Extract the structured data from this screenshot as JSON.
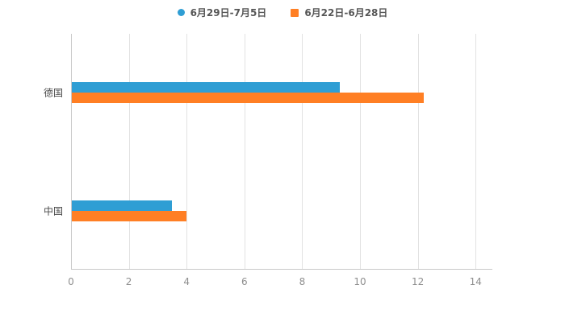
{
  "chart_data": {
    "type": "bar",
    "orientation": "horizontal",
    "title": "",
    "xlabel": "",
    "ylabel": "",
    "categories": [
      "德国",
      "中国"
    ],
    "series": [
      {
        "name": "6月29日-7月5日",
        "marker": "circle",
        "color": "#2f9ed4",
        "values": [
          9.3,
          3.5
        ]
      },
      {
        "name": "6月22日-6月28日",
        "marker": "square",
        "color": "#ff7f24",
        "values": [
          12.2,
          4.0
        ]
      }
    ],
    "xlim": [
      0,
      14.3
    ],
    "xticks": [
      0,
      2,
      4,
      6,
      8,
      10,
      12,
      14
    ],
    "grid": true,
    "legend_position": "top"
  },
  "styles": {
    "background": "#ffffff",
    "grid_color": "#e2e2e2",
    "axis_color": "#c9c9c9",
    "tick_label_color": "#8f8f8f",
    "category_label_color": "#4a4a4a",
    "legend_label_color": "#565656"
  }
}
